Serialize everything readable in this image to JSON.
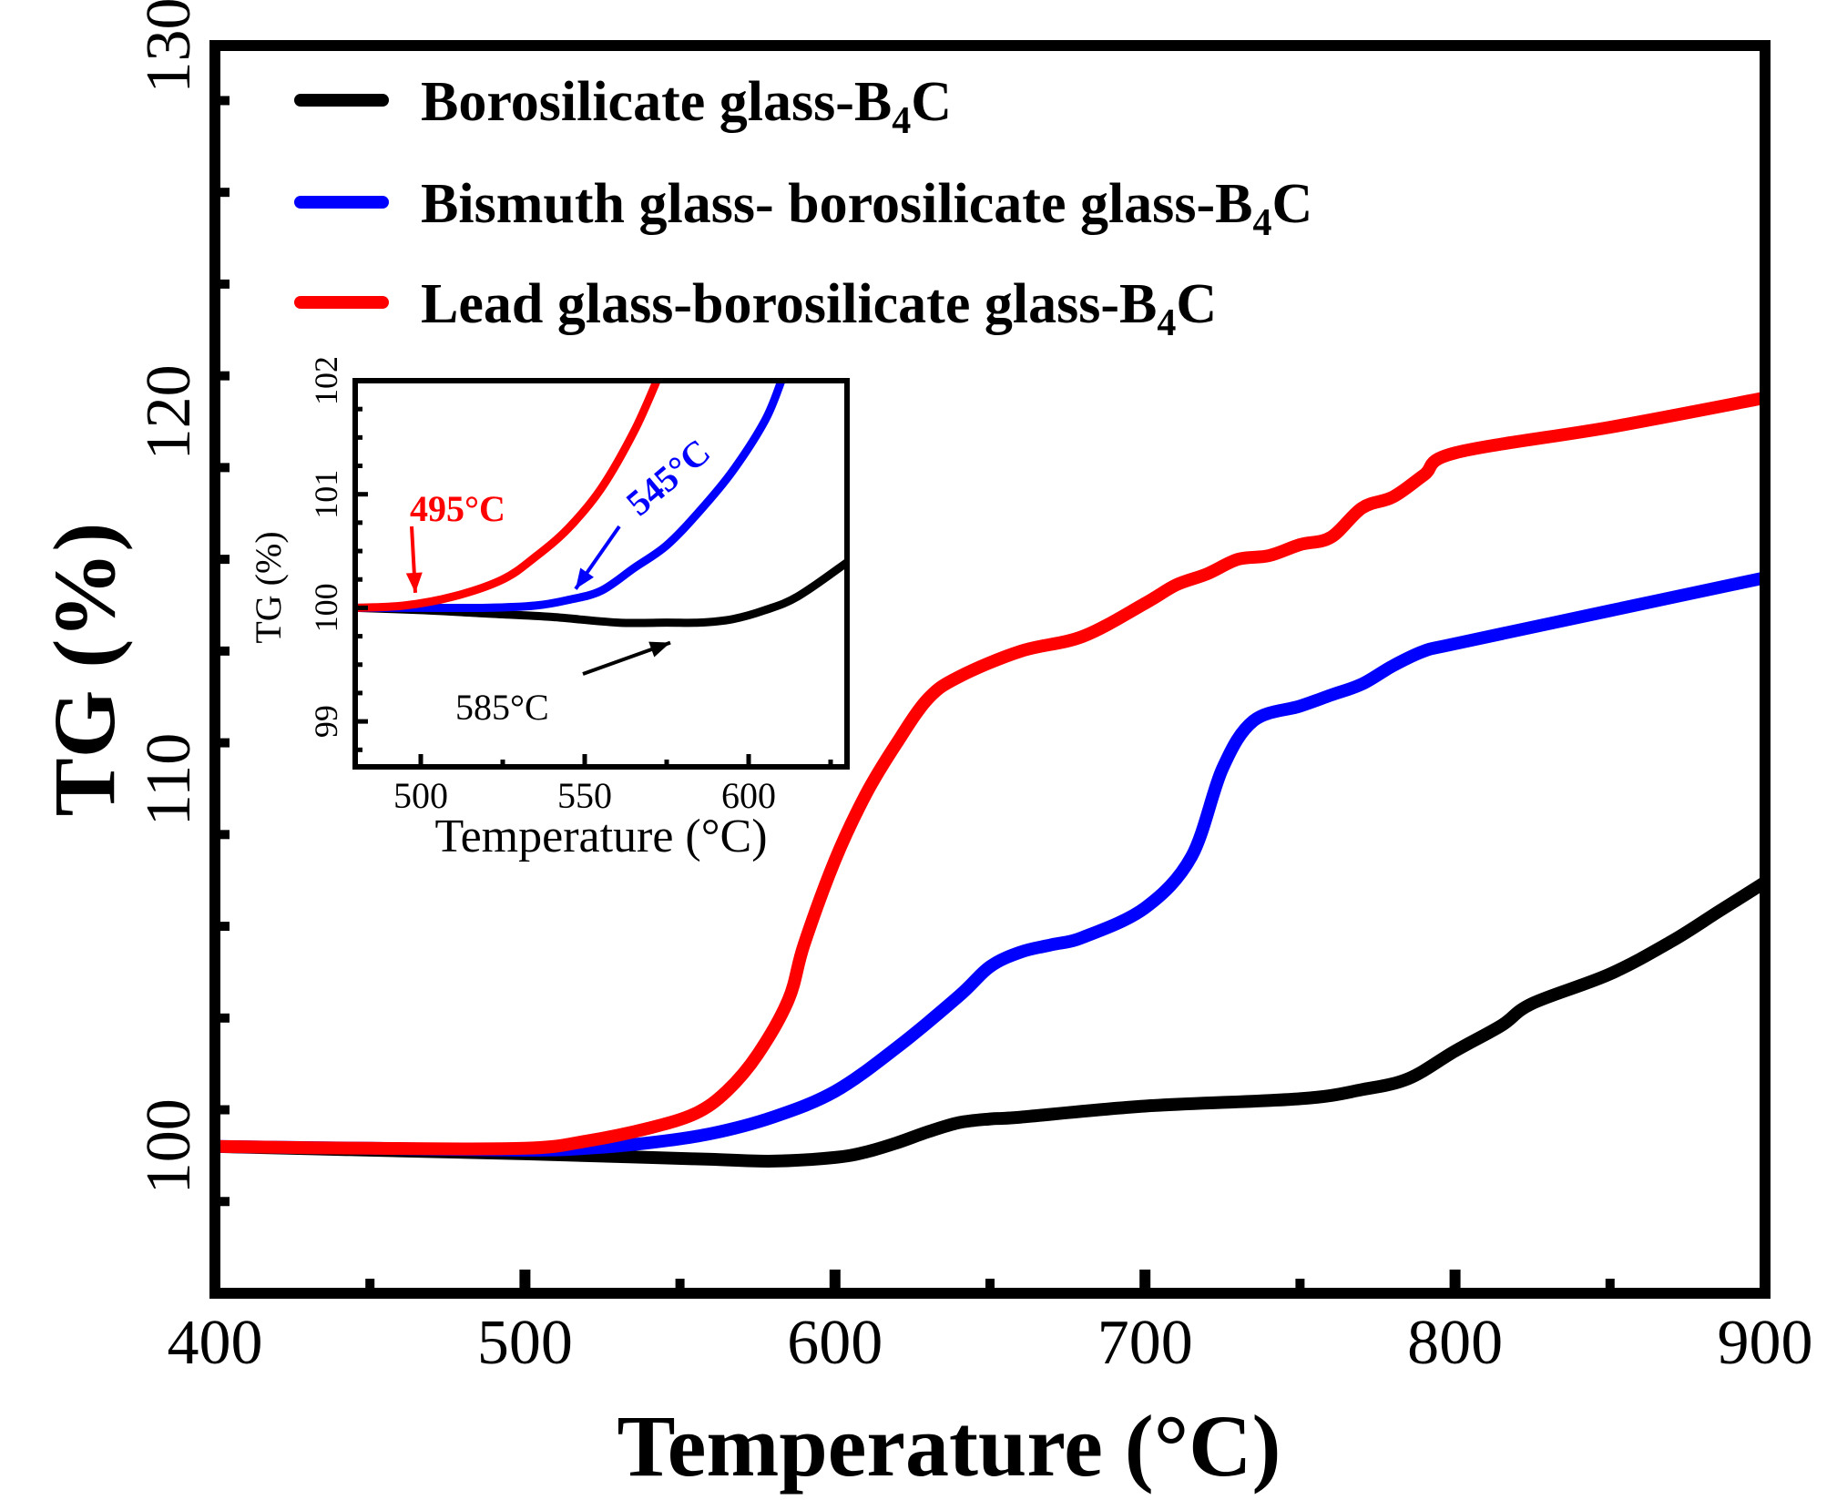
{
  "chart_data": {
    "type": "line",
    "title": "",
    "xlabel": "Temperature (°C)",
    "ylabel": "TG (%)",
    "xlim": [
      400,
      900
    ],
    "ylim": [
      96,
      130
    ],
    "xticks": [
      400,
      500,
      600,
      700,
      800,
      900
    ],
    "yticks": [
      100,
      110,
      120,
      130
    ],
    "grid": false,
    "legend_position": "top-left",
    "colors": {
      "black": "#000000",
      "blue": "#0000ff",
      "red": "#ff0000"
    },
    "series": [
      {
        "name": "Borosilicate glass-B4C",
        "label_main": "Borosilicate glass-B",
        "label_sub": "4",
        "label_end": "C",
        "color": "#000000",
        "x": [
          400,
          450,
          500,
          540,
          560,
          580,
          600,
          610,
          620,
          630,
          640,
          650,
          660,
          700,
          750,
          770,
          785,
          800,
          815,
          825,
          850,
          870,
          885,
          900
        ],
        "y": [
          100,
          99.9,
          99.8,
          99.7,
          99.65,
          99.6,
          99.7,
          99.85,
          100.1,
          100.4,
          100.65,
          100.75,
          100.8,
          101.1,
          101.3,
          101.55,
          101.85,
          102.6,
          103.3,
          103.9,
          104.7,
          105.6,
          106.4,
          107.2
        ]
      },
      {
        "name": "Bismuth glass- borosilicate glass-B4C",
        "label_main": "Bismuth glass- borosilicate glass-B",
        "label_sub": "4",
        "label_end": "C",
        "color": "#0000ff",
        "x": [
          400,
          450,
          500,
          520,
          540,
          560,
          580,
          600,
          620,
          640,
          650,
          660,
          670,
          680,
          700,
          715,
          725,
          735,
          750,
          760,
          770,
          780,
          790,
          800,
          850,
          900
        ],
        "y": [
          100,
          99.95,
          99.9,
          99.95,
          100.1,
          100.35,
          100.8,
          101.5,
          102.7,
          104.1,
          104.9,
          105.3,
          105.5,
          105.7,
          106.5,
          107.9,
          110.3,
          111.6,
          112.0,
          112.3,
          112.6,
          113.1,
          113.5,
          113.7,
          114.6,
          115.5
        ]
      },
      {
        "name": "Lead glass-borosilicate glass-B4C",
        "label_main": "Lead glass-borosilicate glass-B",
        "label_sub": "4",
        "label_end": "C",
        "color": "#ff0000",
        "x": [
          400,
          450,
          500,
          520,
          540,
          555,
          565,
          575,
          585,
          590,
          600,
          610,
          620,
          630,
          640,
          660,
          680,
          700,
          710,
          720,
          730,
          740,
          750,
          760,
          770,
          780,
          790,
          800,
          850,
          900
        ],
        "y": [
          100,
          99.95,
          99.95,
          100.15,
          100.5,
          100.9,
          101.5,
          102.5,
          104.0,
          105.5,
          107.8,
          109.6,
          111.0,
          112.2,
          112.8,
          113.5,
          113.9,
          114.8,
          115.3,
          115.6,
          116.0,
          116.1,
          116.4,
          116.6,
          117.4,
          117.7,
          118.3,
          118.9,
          119.6,
          120.4
        ]
      }
    ],
    "inset": {
      "type": "line",
      "xlabel": "Temperature (°C)",
      "ylabel": "TG (%)",
      "xlim": [
        480,
        630
      ],
      "ylim": [
        98.6,
        102
      ],
      "xticks": [
        500,
        550,
        600
      ],
      "yticks": [
        99,
        100,
        101,
        102
      ],
      "series": [
        {
          "name": "Borosilicate glass-B4C",
          "color": "#000000",
          "x": [
            480,
            500,
            520,
            540,
            560,
            575,
            585,
            595,
            605,
            615,
            630
          ],
          "y": [
            100,
            99.98,
            99.95,
            99.92,
            99.87,
            99.87,
            99.87,
            99.9,
            99.98,
            100.1,
            100.4
          ]
        },
        {
          "name": "Bismuth glass- borosilicate glass-B4C",
          "color": "#0000ff",
          "x": [
            480,
            500,
            520,
            535,
            545,
            555,
            565,
            575,
            585,
            595,
            605,
            610
          ],
          "y": [
            100,
            100,
            100,
            100.02,
            100.07,
            100.15,
            100.35,
            100.55,
            100.85,
            101.2,
            101.65,
            102.0
          ]
        },
        {
          "name": "Lead glass-borosilicate glass-B4C",
          "color": "#ff0000",
          "x": [
            480,
            495,
            510,
            525,
            535,
            545,
            555,
            565,
            572
          ],
          "y": [
            100,
            100.02,
            100.1,
            100.25,
            100.45,
            100.7,
            101.05,
            101.55,
            102.0
          ]
        }
      ],
      "annotations": [
        {
          "text": "495°C",
          "color": "#ff0000",
          "x": 495,
          "y": 100.02
        },
        {
          "text": "545°C",
          "color": "#0000ff",
          "x": 545,
          "y": 100.07
        },
        {
          "text": "585°C",
          "color": "#000000",
          "x": 585,
          "y": 99.87
        }
      ]
    }
  }
}
